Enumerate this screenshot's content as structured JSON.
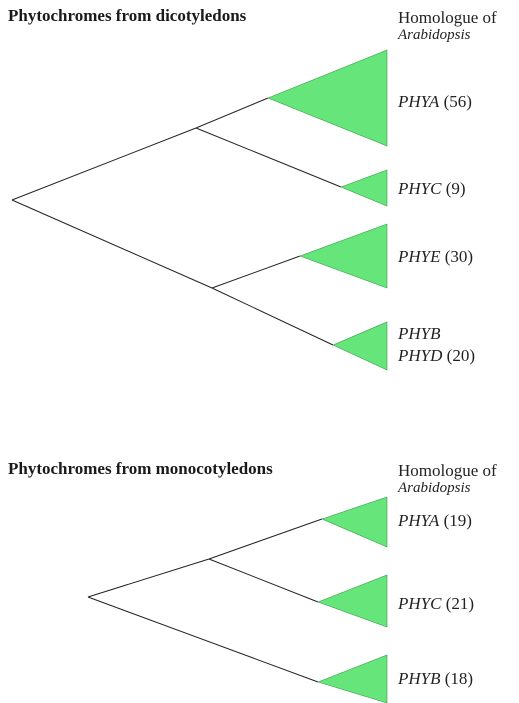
{
  "panels": [
    {
      "title": "Phytochromes from dicotyledons",
      "header_line1": "Homologue of",
      "header_line2": "Arabidopsis",
      "clades": [
        {
          "gene": "PHYA",
          "count": "(56)"
        },
        {
          "gene": "PHYC",
          "count": "(9)"
        },
        {
          "gene": "PHYE",
          "count": "(30)"
        },
        {
          "gene_line1": "PHYB",
          "gene": "PHYD",
          "count": "(20)"
        }
      ]
    },
    {
      "title": "Phytochromes from monocotyledons",
      "header_line1": "Homologue of",
      "header_line2": "Arabidopsis",
      "clades": [
        {
          "gene": "PHYA",
          "count": "(19)"
        },
        {
          "gene": "PHYC",
          "count": "(21)"
        },
        {
          "gene": "PHYB",
          "count": "(18)"
        }
      ]
    }
  ],
  "colors": {
    "clade_fill": "#66e57a",
    "line": "#222222"
  }
}
